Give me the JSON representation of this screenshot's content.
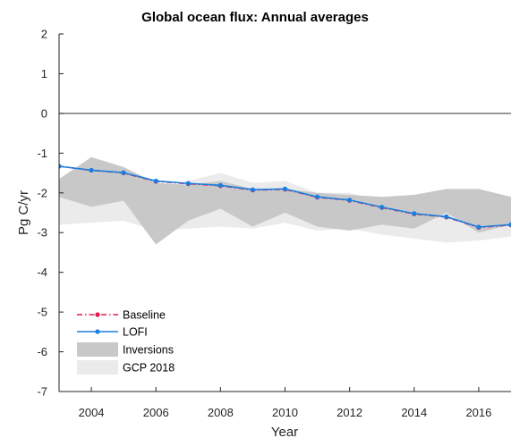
{
  "chart_data": {
    "type": "line",
    "title": "Global ocean flux:  Annual averages",
    "xlabel": "Year",
    "ylabel": "Pg C/yr",
    "xlim": [
      2003,
      2017
    ],
    "ylim": [
      -7,
      2
    ],
    "xticks": [
      2004,
      2006,
      2008,
      2010,
      2012,
      2014,
      2016
    ],
    "yticks": [
      2,
      1,
      0,
      -1,
      -2,
      -3,
      -4,
      -5,
      -6,
      -7
    ],
    "grid": false,
    "zero_line": true,
    "legend_position": "bottom-left",
    "x": [
      2003,
      2004,
      2005,
      2006,
      2007,
      2008,
      2009,
      2010,
      2011,
      2012,
      2013,
      2014,
      2015,
      2016,
      2017
    ],
    "series": [
      {
        "name": "Baseline",
        "color": "#e8174a",
        "style": "dash-dot",
        "marker": "dot",
        "values": [
          -1.33,
          -1.43,
          -1.5,
          -1.71,
          -1.77,
          -1.82,
          -1.93,
          -1.91,
          -2.11,
          -2.19,
          -2.37,
          -2.53,
          -2.61,
          -2.87,
          -2.81
        ]
      },
      {
        "name": "LOFI",
        "color": "#1a7fe0",
        "style": "solid",
        "marker": "dot",
        "values": [
          -1.33,
          -1.43,
          -1.49,
          -1.7,
          -1.76,
          -1.81,
          -1.92,
          -1.9,
          -2.1,
          -2.18,
          -2.36,
          -2.52,
          -2.6,
          -2.86,
          -2.8
        ]
      }
    ],
    "bands": [
      {
        "name": "GCP 2018",
        "color": "#ebebeb",
        "upper": [
          -2.05,
          -2.1,
          -2.05,
          -1.95,
          -1.7,
          -1.5,
          -1.75,
          -1.7,
          -2.0,
          -2.0,
          -2.2,
          -2.2,
          -2.3,
          -2.3,
          -2.3
        ],
        "lower": [
          -2.8,
          -2.75,
          -2.7,
          -2.95,
          -2.9,
          -2.85,
          -2.9,
          -2.75,
          -2.95,
          -2.9,
          -3.05,
          -3.15,
          -3.25,
          -3.2,
          -3.1
        ]
      },
      {
        "name": "Inversions",
        "color": "#c8c8c8",
        "upper": [
          -1.65,
          -1.1,
          -1.35,
          -1.75,
          -1.8,
          -1.7,
          -1.9,
          -1.9,
          -2.0,
          -2.05,
          -2.1,
          -2.05,
          -1.9,
          -1.9,
          -2.1
        ],
        "lower": [
          -2.1,
          -2.35,
          -2.2,
          -3.3,
          -2.7,
          -2.4,
          -2.85,
          -2.5,
          -2.85,
          -2.95,
          -2.8,
          -2.9,
          -2.5,
          -3.0,
          -2.8
        ]
      }
    ]
  }
}
